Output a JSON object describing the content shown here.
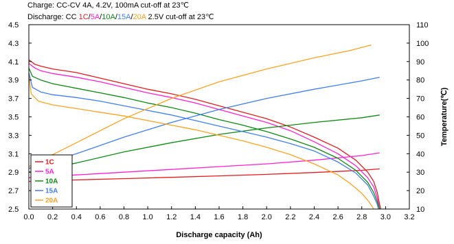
{
  "header": {
    "charge": "Charge: CC-CV 4A, 4.2V, 100mA cut-off at 23℃",
    "discharge_prefix": "Discharge: CC ",
    "discharge_rates": [
      {
        "text": "1C",
        "color": "#e8191c"
      },
      {
        "text": "/",
        "color": "#000000"
      },
      {
        "text": "5A",
        "color": "#ff1fd5"
      },
      {
        "text": "/",
        "color": "#000000"
      },
      {
        "text": "10A",
        "color": "#0a8a10"
      },
      {
        "text": "/",
        "color": "#000000"
      },
      {
        "text": "15A",
        "color": "#3f7df0"
      },
      {
        "text": "/",
        "color": "#000000"
      },
      {
        "text": "20A",
        "color": "#ffa21f"
      }
    ],
    "discharge_suffix": " 2.5V cut-off at 23℃"
  },
  "chart_data": {
    "type": "line",
    "xlabel": "Discharge capacity (Ah)",
    "ylabel_left": "",
    "ylabel_right": "Temperature(℃)",
    "xlim": [
      0.0,
      3.2
    ],
    "ylim_left": [
      2.5,
      4.5
    ],
    "ylim_right": [
      10,
      110
    ],
    "x_ticks": [
      "0.0",
      "0.2",
      "0.4",
      "0.6",
      "0.8",
      "1.0",
      "1.2",
      "1.4",
      "1.6",
      "1.8",
      "2.0",
      "2.2",
      "2.4",
      "2.6",
      "2.8",
      "3.0",
      "3.2"
    ],
    "y_left_ticks": [
      "2.5",
      "2.7",
      "2.9",
      "3.1",
      "3.3",
      "3.5",
      "3.7",
      "3.9",
      "4.1",
      "4.3",
      "4.5"
    ],
    "y_right_ticks": [
      "10",
      "20",
      "30",
      "40",
      "50",
      "60",
      "70",
      "80",
      "90",
      "100",
      "110"
    ],
    "grid": false,
    "legend_position": "bottom-left",
    "series": [
      {
        "name": "1C",
        "color": "#e8191c",
        "voltage": [
          [
            0.0,
            4.12
          ],
          [
            0.05,
            4.07
          ],
          [
            0.1,
            4.05
          ],
          [
            0.2,
            4.02
          ],
          [
            0.4,
            3.98
          ],
          [
            0.6,
            3.92
          ],
          [
            0.8,
            3.86
          ],
          [
            1.0,
            3.8
          ],
          [
            1.2,
            3.75
          ],
          [
            1.4,
            3.69
          ],
          [
            1.6,
            3.62
          ],
          [
            1.8,
            3.55
          ],
          [
            2.0,
            3.48
          ],
          [
            2.2,
            3.39
          ],
          [
            2.4,
            3.28
          ],
          [
            2.6,
            3.16
          ],
          [
            2.75,
            3.03
          ],
          [
            2.85,
            2.9
          ],
          [
            2.9,
            2.8
          ],
          [
            2.93,
            2.68
          ],
          [
            2.95,
            2.55
          ],
          [
            2.96,
            2.5
          ]
        ],
        "temperature": [
          [
            0.0,
            25.0
          ],
          [
            0.4,
            25.8
          ],
          [
            0.8,
            26.5
          ],
          [
            1.2,
            27.2
          ],
          [
            1.6,
            28.0
          ],
          [
            2.0,
            28.8
          ],
          [
            2.4,
            29.8
          ],
          [
            2.8,
            31.0
          ],
          [
            2.95,
            31.8
          ]
        ]
      },
      {
        "name": "5A",
        "color": "#ff1fd5",
        "voltage": [
          [
            0.0,
            4.08
          ],
          [
            0.05,
            4.03
          ],
          [
            0.1,
            4.0
          ],
          [
            0.2,
            3.97
          ],
          [
            0.4,
            3.93
          ],
          [
            0.6,
            3.88
          ],
          [
            0.8,
            3.82
          ],
          [
            1.0,
            3.76
          ],
          [
            1.2,
            3.71
          ],
          [
            1.4,
            3.65
          ],
          [
            1.6,
            3.58
          ],
          [
            1.8,
            3.51
          ],
          [
            2.0,
            3.44
          ],
          [
            2.2,
            3.35
          ],
          [
            2.4,
            3.23
          ],
          [
            2.6,
            3.1
          ],
          [
            2.75,
            2.97
          ],
          [
            2.85,
            2.84
          ],
          [
            2.9,
            2.74
          ],
          [
            2.93,
            2.62
          ],
          [
            2.95,
            2.5
          ]
        ],
        "temperature": [
          [
            0.0,
            27.0
          ],
          [
            0.4,
            28.5
          ],
          [
            0.8,
            30.0
          ],
          [
            1.2,
            31.5
          ],
          [
            1.6,
            33.0
          ],
          [
            2.0,
            34.5
          ],
          [
            2.4,
            36.5
          ],
          [
            2.8,
            39.0
          ],
          [
            2.95,
            40.5
          ]
        ]
      },
      {
        "name": "10A",
        "color": "#0a8a10",
        "voltage": [
          [
            0.0,
            4.03
          ],
          [
            0.03,
            3.94
          ],
          [
            0.1,
            3.9
          ],
          [
            0.2,
            3.86
          ],
          [
            0.4,
            3.81
          ],
          [
            0.6,
            3.76
          ],
          [
            0.8,
            3.71
          ],
          [
            1.0,
            3.65
          ],
          [
            1.2,
            3.6
          ],
          [
            1.4,
            3.54
          ],
          [
            1.6,
            3.47
          ],
          [
            1.8,
            3.41
          ],
          [
            2.0,
            3.34
          ],
          [
            2.2,
            3.26
          ],
          [
            2.4,
            3.17
          ],
          [
            2.6,
            3.05
          ],
          [
            2.75,
            2.92
          ],
          [
            2.85,
            2.79
          ],
          [
            2.9,
            2.68
          ],
          [
            2.93,
            2.58
          ],
          [
            2.95,
            2.5
          ]
        ],
        "temperature": [
          [
            0.0,
            30.0
          ],
          [
            0.4,
            35.0
          ],
          [
            0.8,
            41.0
          ],
          [
            1.2,
            46.0
          ],
          [
            1.6,
            50.5
          ],
          [
            2.0,
            54.0
          ],
          [
            2.4,
            57.0
          ],
          [
            2.8,
            59.5
          ],
          [
            2.95,
            61.0
          ]
        ]
      },
      {
        "name": "15A",
        "color": "#3f7df0",
        "voltage": [
          [
            0.0,
            3.98
          ],
          [
            0.03,
            3.82
          ],
          [
            0.1,
            3.77
          ],
          [
            0.2,
            3.74
          ],
          [
            0.4,
            3.71
          ],
          [
            0.6,
            3.67
          ],
          [
            0.8,
            3.62
          ],
          [
            1.0,
            3.57
          ],
          [
            1.2,
            3.52
          ],
          [
            1.4,
            3.46
          ],
          [
            1.6,
            3.4
          ],
          [
            1.8,
            3.34
          ],
          [
            2.0,
            3.28
          ],
          [
            2.2,
            3.21
          ],
          [
            2.4,
            3.13
          ],
          [
            2.6,
            3.01
          ],
          [
            2.75,
            2.89
          ],
          [
            2.85,
            2.76
          ],
          [
            2.9,
            2.64
          ],
          [
            2.93,
            2.55
          ],
          [
            2.94,
            2.5
          ]
        ],
        "temperature": [
          [
            0.0,
            32.0
          ],
          [
            0.4,
            40.0
          ],
          [
            0.8,
            49.0
          ],
          [
            1.2,
            57.0
          ],
          [
            1.6,
            64.0
          ],
          [
            2.0,
            70.0
          ],
          [
            2.4,
            75.0
          ],
          [
            2.8,
            79.5
          ],
          [
            2.95,
            81.5
          ]
        ]
      },
      {
        "name": "20A",
        "color": "#ffa21f",
        "voltage": [
          [
            0.0,
            3.95
          ],
          [
            0.02,
            3.75
          ],
          [
            0.08,
            3.67
          ],
          [
            0.2,
            3.63
          ],
          [
            0.4,
            3.59
          ],
          [
            0.6,
            3.55
          ],
          [
            0.8,
            3.51
          ],
          [
            1.0,
            3.46
          ],
          [
            1.2,
            3.41
          ],
          [
            1.4,
            3.36
          ],
          [
            1.6,
            3.3
          ],
          [
            1.8,
            3.24
          ],
          [
            2.0,
            3.17
          ],
          [
            2.2,
            3.09
          ],
          [
            2.4,
            2.99
          ],
          [
            2.6,
            2.87
          ],
          [
            2.7,
            2.78
          ],
          [
            2.8,
            2.67
          ],
          [
            2.86,
            2.58
          ],
          [
            2.9,
            2.5
          ]
        ],
        "temperature": [
          [
            0.0,
            33.0
          ],
          [
            0.4,
            46.0
          ],
          [
            0.8,
            59.0
          ],
          [
            1.2,
            70.0
          ],
          [
            1.6,
            79.0
          ],
          [
            2.0,
            86.0
          ],
          [
            2.4,
            92.0
          ],
          [
            2.7,
            96.0
          ],
          [
            2.88,
            99.0
          ]
        ]
      }
    ]
  }
}
